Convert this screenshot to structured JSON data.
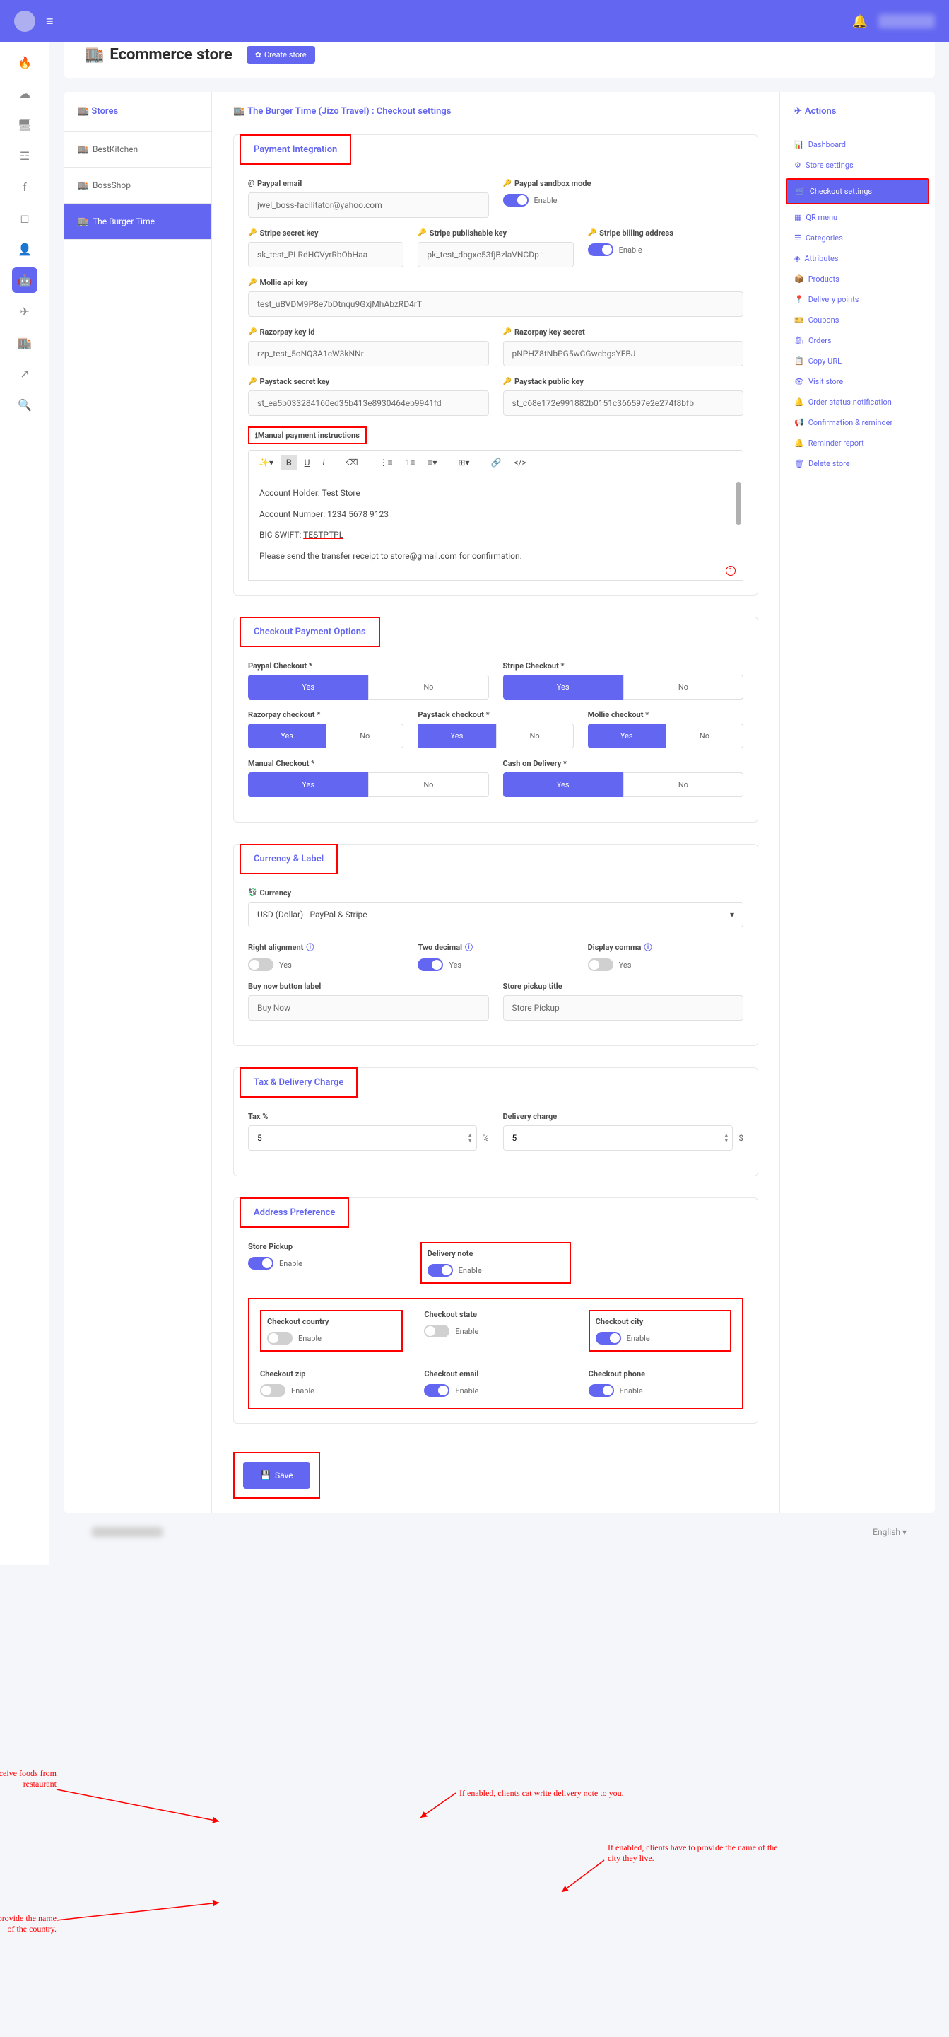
{
  "topbar": {
    "hamburger": "≡",
    "bell": "🔔"
  },
  "page": {
    "title": "Ecommerce store",
    "createBtn": "Create store"
  },
  "storesSidebar": {
    "header": "Stores",
    "items": [
      {
        "name": "BestKitchen",
        "active": false
      },
      {
        "name": "BossShop",
        "active": false
      },
      {
        "name": "The Burger Time",
        "active": true
      }
    ]
  },
  "breadcrumb": "The Burger Time (Jizo Travel) : Checkout settings",
  "sections": {
    "payment": {
      "title": "Payment Integration",
      "paypalEmail": {
        "label": "Paypal email",
        "value": "jwel_boss-facilitator@yahoo.com"
      },
      "sandbox": {
        "label": "Paypal sandbox mode",
        "toggle": "Enable"
      },
      "stripeSecret": {
        "label": "Stripe secret key",
        "value": "sk_test_PLRdHCVyrRbObHaa"
      },
      "stripePub": {
        "label": "Stripe publishable key",
        "value": "pk_test_dbgxe53fjBzlaVNCDp"
      },
      "stripeBilling": {
        "label": "Stripe billing address",
        "toggle": "Enable"
      },
      "mollie": {
        "label": "Mollie api key",
        "value": "test_uBVDM9P8e7bDtnqu9GxjMhAbzRD4rT"
      },
      "razorId": {
        "label": "Razorpay key id",
        "value": "rzp_test_5oNQ3A1cW3kNNr"
      },
      "razorSecret": {
        "label": "Razorpay key secret",
        "value": "pNPHZ8tNbPG5wCGwcbgsYFBJ"
      },
      "paystackSecret": {
        "label": "Paystack secret key",
        "value": "st_ea5b033284160ed35b413e8930464eb9941fd"
      },
      "paystackPublic": {
        "label": "Paystack public key",
        "value": "st_c68e172e991882b0151c366597e2e274f8bfb"
      },
      "manualLabel": "Manual payment instructions",
      "manualLine1": "Account Holder: Test Store",
      "manualLine2": "Account Number: 1234 5678 9123",
      "manualLine3a": "BIC SWIFT: ",
      "manualLine3b": "TESTPTPL",
      "manualLine4": "Please send the transfer receipt to store@gmail.com for confirmation."
    },
    "checkoutOptions": {
      "title": "Checkout Payment Options",
      "paypal": "Paypal Checkout *",
      "stripe": "Stripe Checkout *",
      "razorpay": "Razorpay checkout *",
      "paystack": "Paystack checkout *",
      "mollie": "Mollie checkout *",
      "manual": "Manual Checkout *",
      "cod": "Cash on Delivery *",
      "yes": "Yes",
      "no": "No"
    },
    "currency": {
      "title": "Currency & Label",
      "currencyLabel": "Currency",
      "currencyValue": "USD (Dollar) - PayPal & Stripe",
      "rightAlign": "Right alignment",
      "twoDecimal": "Two decimal",
      "displayComma": "Display comma",
      "yes": "Yes",
      "buyNowLabel": "Buy now button label",
      "buyNowValue": "Buy Now",
      "pickupTitleLabel": "Store pickup title",
      "pickupTitleValue": "Store Pickup"
    },
    "tax": {
      "title": "Tax & Delivery Charge",
      "taxLabel": "Tax %",
      "taxValue": "5",
      "taxUnit": "%",
      "deliveryLabel": "Delivery charge",
      "deliveryValue": "5",
      "deliveryUnit": "$"
    },
    "address": {
      "title": "Address Preference",
      "storePickup": "Store Pickup",
      "deliveryNote": "Delivery note",
      "checkoutCountry": "Checkout country",
      "checkoutState": "Checkout state",
      "checkoutCity": "Checkout city",
      "checkoutZip": "Checkout zip",
      "checkoutEmail": "Checkout email",
      "checkoutPhone": "Checkout phone",
      "enable": "Enable"
    }
  },
  "saveBtn": "Save",
  "actions": {
    "title": "Actions",
    "items": [
      {
        "icon": "📊",
        "label": "Dashboard"
      },
      {
        "icon": "⚙",
        "label": "Store settings"
      },
      {
        "icon": "🛒",
        "label": "Checkout settings",
        "highlighted": true
      },
      {
        "icon": "▦",
        "label": "QR menu"
      },
      {
        "icon": "☰",
        "label": "Categories"
      },
      {
        "icon": "◈",
        "label": "Attributes"
      },
      {
        "icon": "📦",
        "label": "Products"
      },
      {
        "icon": "📍",
        "label": "Delivery points"
      },
      {
        "icon": "🎫",
        "label": "Coupons"
      },
      {
        "icon": "🛍",
        "label": "Orders"
      },
      {
        "icon": "📋",
        "label": "Copy URL"
      },
      {
        "icon": "👁",
        "label": "Visit store"
      },
      {
        "icon": "🔔",
        "label": "Order status notification"
      },
      {
        "icon": "📢",
        "label": "Confirmation & reminder"
      },
      {
        "icon": "🔔",
        "label": "Reminder report"
      },
      {
        "icon": "🗑",
        "label": "Delete store"
      }
    ]
  },
  "annotations": {
    "a1": "If enabled, clients can receive foods from restaurant",
    "a2": "If enabled, clients cat write delivery note to you.",
    "a3": "If enabled, clients have to provide the name of the city they live.",
    "a4": "If disabled, clients can't provide the name of the country."
  },
  "footer": {
    "lang": "English"
  },
  "colors": {
    "primary": "#6366f1",
    "red": "#ff0000"
  }
}
